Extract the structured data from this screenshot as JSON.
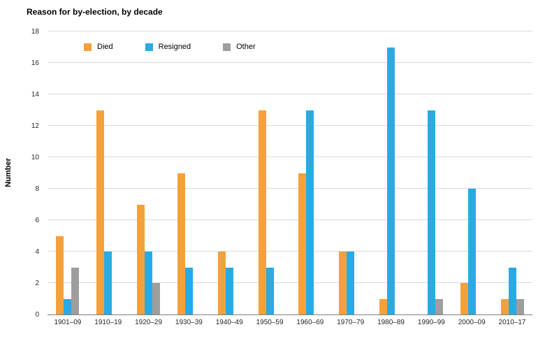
{
  "title": "Reason for by-election, by decade",
  "ylabel": "Number",
  "colors": {
    "died": "#F5A13B",
    "resigned": "#29ABE2",
    "other": "#9E9E9E",
    "gridline": "#D9D9D9",
    "axis": "#808080"
  },
  "chart_data": {
    "type": "bar",
    "title": "Reason for by-election, by decade",
    "xlabel": "",
    "ylabel": "Number",
    "ylim": [
      0,
      18
    ],
    "ytick_step": 2,
    "grid": true,
    "legend_position": "top-left-inside",
    "categories": [
      "1901–09",
      "1910–19",
      "1920–29",
      "1930–39",
      "1940–49",
      "1950–59",
      "1960–69",
      "1970–79",
      "1980–89",
      "1990–99",
      "2000–09",
      "2010–17"
    ],
    "series": [
      {
        "name": "Died",
        "color": "#F5A13B",
        "values": [
          5,
          13,
          7,
          9,
          4,
          13,
          9,
          4,
          1,
          0,
          2,
          1
        ]
      },
      {
        "name": "Resigned",
        "color": "#29ABE2",
        "values": [
          1,
          4,
          4,
          3,
          3,
          3,
          13,
          4,
          17,
          13,
          8,
          3
        ]
      },
      {
        "name": "Other",
        "color": "#9E9E9E",
        "values": [
          3,
          0,
          2,
          0,
          0,
          0,
          0,
          0,
          0,
          1,
          0,
          1
        ]
      }
    ]
  }
}
